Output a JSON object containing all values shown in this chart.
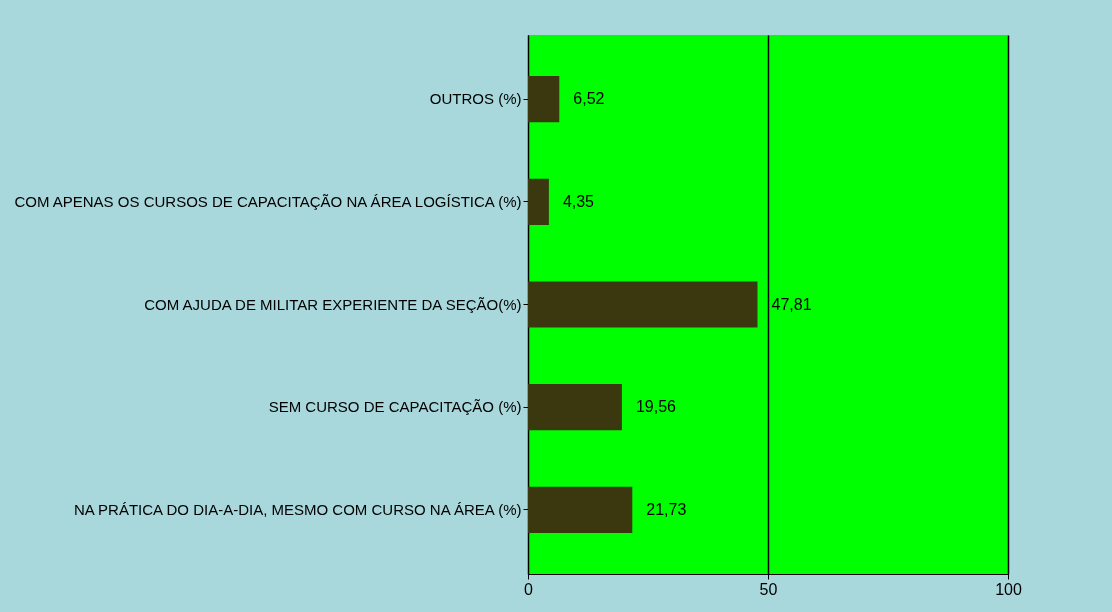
{
  "chart_data": {
    "type": "bar",
    "orientation": "horizontal",
    "categories": [
      "OUTROS (%)",
      "COM APENAS OS CURSOS DE CAPACITAÇÃO NA ÁREA LOGÍSTICA (%)",
      "COM AJUDA DE MILITAR EXPERIENTE DA SEÇÃO(%)",
      "SEM CURSO DE CAPACITAÇÃO (%)",
      "NA PRÁTICA DO DIA-A-DIA, MESMO COM CURSO NA ÁREA (%)"
    ],
    "values": [
      6.52,
      4.35,
      47.81,
      19.56,
      21.73
    ],
    "value_labels": [
      "6,52",
      "4,35",
      "47,81",
      "19,56",
      "21,73"
    ],
    "color": "#3b3810",
    "xlim": [
      0,
      100
    ],
    "xticks": [
      0,
      50,
      100
    ],
    "grid": "x"
  }
}
